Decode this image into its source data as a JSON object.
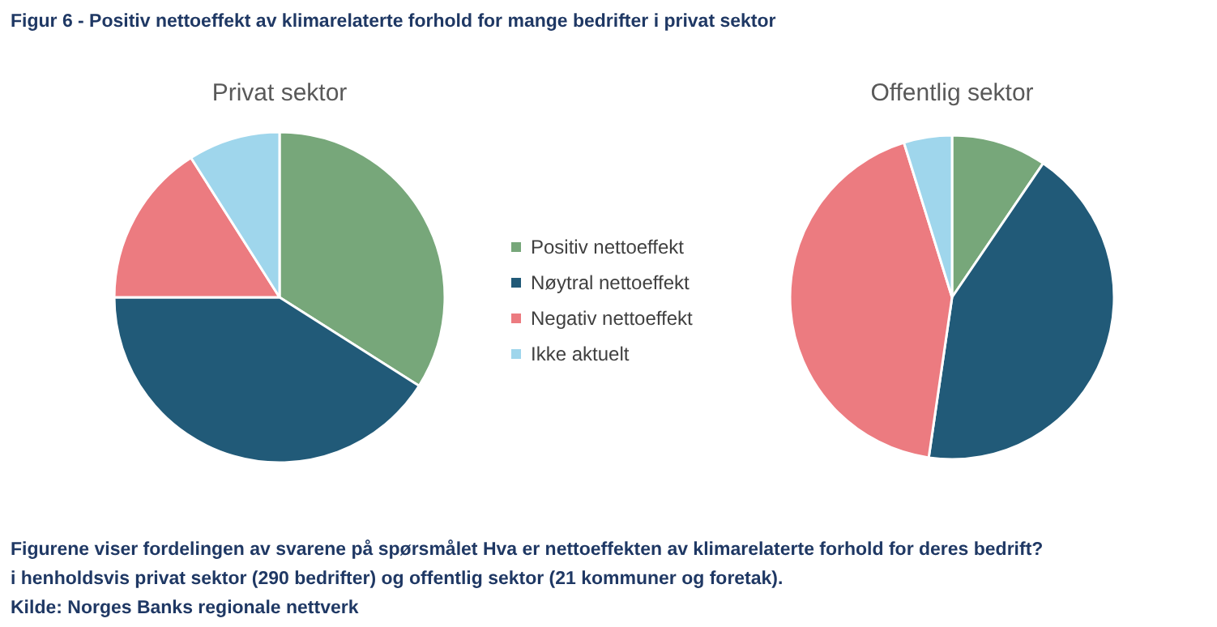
{
  "chart_data": [
    {
      "type": "pie",
      "title": "Privat sektor",
      "categories": [
        "Positiv nettoeffekt",
        "Nøytral nettoeffekt",
        "Negativ nettoeffekt",
        "Ikke aktuelt"
      ],
      "values": [
        34,
        41,
        16,
        9
      ],
      "colors": [
        "#77a77a",
        "#215a78",
        "#ec7b80",
        "#9fd6ec"
      ],
      "legend": "right",
      "annotations": [
        "Figur 6 - Positiv nettoeffekt av klimarelaterte forhold for mange bedrifter i privat sektor",
        "Figurene viser fordelingen av svarene på spørsmålet Hva er nettoeffekten av klimarelaterte forhold for deres bedrift? i henholdsvis privat sektor (290 bedrifter) og offentlig sektor (21 kommuner og foretak).",
        "Kilde: Norges Banks regionale nettverk"
      ]
    },
    {
      "type": "pie",
      "title": "Offentlig sektor",
      "categories": [
        null,
        null,
        null,
        null
      ],
      "values": [
        9.5,
        42.8,
        42.9,
        4.8
      ],
      "colors": [
        "#77a77a",
        "#215a78",
        "#ec7b80",
        "#9fd6ec"
      ]
    }
  ]
}
